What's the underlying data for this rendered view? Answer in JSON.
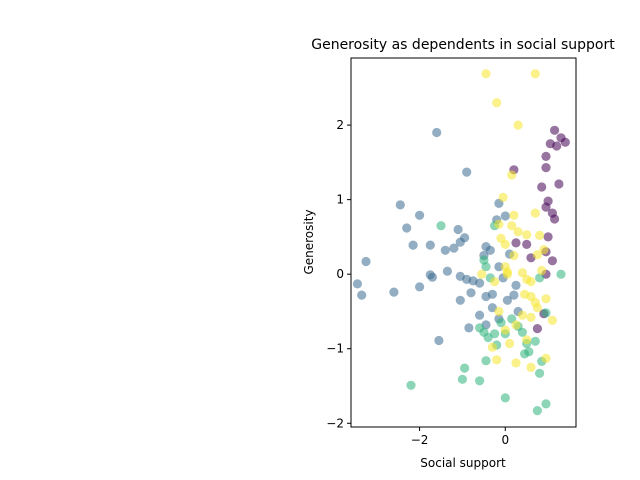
{
  "chart_data": {
    "type": "scatter",
    "title": "Generosity as dependents in social support",
    "xlabel": "Social support",
    "ylabel": "Generosity",
    "xlim": [
      -3.6,
      1.65
    ],
    "ylim": [
      -2.05,
      2.9
    ],
    "xticks": [
      -2,
      0
    ],
    "xtick_labels": [
      "−2",
      "0"
    ],
    "yticks": [
      -2,
      -1,
      0,
      1,
      2
    ],
    "ytick_labels": [
      "−2",
      "−1",
      "0",
      "1",
      "2"
    ],
    "grid": false,
    "legend": false,
    "marker_opacity": 0.55,
    "series": [
      {
        "color": "#440154",
        "points": [
          [
            1.15,
            1.93
          ],
          [
            1.3,
            1.83
          ],
          [
            1.4,
            1.77
          ],
          [
            1.05,
            1.75
          ],
          [
            1.2,
            1.72
          ],
          [
            0.95,
            1.58
          ],
          [
            0.95,
            1.43
          ],
          [
            0.85,
            1.17
          ],
          [
            1.25,
            1.21
          ],
          [
            1.0,
            0.98
          ],
          [
            0.95,
            0.9
          ],
          [
            1.1,
            0.82
          ],
          [
            1.15,
            0.74
          ],
          [
            1.0,
            0.5
          ],
          [
            0.2,
            1.4
          ],
          [
            0.25,
            0.42
          ],
          [
            0.5,
            0.4
          ],
          [
            0.6,
            0.22
          ],
          [
            0.95,
            0.3
          ],
          [
            1.1,
            0.18
          ],
          [
            0.75,
            -0.73
          ],
          [
            0.9,
            -0.53
          ],
          [
            0.95,
            0.0
          ]
        ]
      },
      {
        "color": "#3b6b8f",
        "points": [
          [
            -1.6,
            1.9
          ],
          [
            -0.9,
            1.37
          ],
          [
            -2.45,
            0.93
          ],
          [
            -2.0,
            0.79
          ],
          [
            -2.3,
            0.62
          ],
          [
            -1.1,
            0.6
          ],
          [
            -0.95,
            0.49
          ],
          [
            -1.2,
            0.35
          ],
          [
            -1.05,
            0.43
          ],
          [
            -1.4,
            0.32
          ],
          [
            -2.15,
            0.39
          ],
          [
            -1.75,
            0.39
          ],
          [
            -3.25,
            0.17
          ],
          [
            -1.75,
            -0.01
          ],
          [
            -1.7,
            -0.04
          ],
          [
            -1.35,
            0.04
          ],
          [
            -1.05,
            -0.03
          ],
          [
            -0.9,
            -0.07
          ],
          [
            -0.75,
            -0.09
          ],
          [
            -0.6,
            -0.12
          ],
          [
            -2.0,
            -0.17
          ],
          [
            -3.45,
            -0.13
          ],
          [
            -3.35,
            -0.28
          ],
          [
            -2.6,
            -0.24
          ],
          [
            -1.05,
            -0.35
          ],
          [
            -0.8,
            -0.25
          ],
          [
            -0.45,
            -0.3
          ],
          [
            -0.3,
            -0.27
          ],
          [
            -0.15,
            0.1
          ],
          [
            -0.15,
            0.95
          ],
          [
            -0.2,
            0.73
          ],
          [
            -0.05,
            -0.05
          ],
          [
            0.0,
            0.78
          ],
          [
            0.1,
            0.27
          ],
          [
            -0.45,
            0.37
          ],
          [
            -0.5,
            0.25
          ],
          [
            -0.35,
            0.32
          ],
          [
            -0.6,
            -0.55
          ],
          [
            -0.45,
            -0.68
          ],
          [
            -0.3,
            -0.45
          ],
          [
            -0.15,
            -0.6
          ],
          [
            0.05,
            -0.35
          ],
          [
            0.2,
            -0.28
          ],
          [
            0.25,
            -0.15
          ],
          [
            0.3,
            -0.5
          ],
          [
            -0.85,
            -0.72
          ],
          [
            -1.55,
            -0.89
          ]
        ]
      },
      {
        "color": "#2eb37c",
        "points": [
          [
            -1.5,
            0.65
          ],
          [
            -0.5,
            0.19
          ],
          [
            -0.45,
            0.1
          ],
          [
            -0.35,
            -0.05
          ],
          [
            -0.25,
            0.65
          ],
          [
            -0.6,
            -0.72
          ],
          [
            -0.5,
            -0.78
          ],
          [
            -0.4,
            -0.85
          ],
          [
            -0.25,
            -0.8
          ],
          [
            -0.2,
            -0.95
          ],
          [
            -0.1,
            -0.65
          ],
          [
            0.0,
            -0.8
          ],
          [
            0.15,
            -0.6
          ],
          [
            0.3,
            -0.7
          ],
          [
            0.4,
            -0.78
          ],
          [
            0.5,
            -0.93
          ],
          [
            0.45,
            -1.07
          ],
          [
            0.55,
            -1.04
          ],
          [
            0.7,
            -0.9
          ],
          [
            0.85,
            -1.17
          ],
          [
            0.8,
            -1.33
          ],
          [
            0.95,
            -1.74
          ],
          [
            0.75,
            -1.83
          ],
          [
            0.0,
            -1.66
          ],
          [
            -0.45,
            -1.16
          ],
          [
            -0.95,
            -1.26
          ],
          [
            -1.0,
            -1.41
          ],
          [
            -0.6,
            -1.43
          ],
          [
            -2.2,
            -1.49
          ],
          [
            0.95,
            -0.52
          ],
          [
            0.8,
            -0.05
          ],
          [
            1.3,
            0.0
          ]
        ]
      },
      {
        "color": "#f5e52a",
        "points": [
          [
            -0.45,
            2.69
          ],
          [
            0.7,
            2.69
          ],
          [
            -0.2,
            2.3
          ],
          [
            0.3,
            2.0
          ],
          [
            0.15,
            1.33
          ],
          [
            -0.05,
            1.03
          ],
          [
            0.2,
            0.79
          ],
          [
            0.15,
            0.65
          ],
          [
            -0.15,
            0.67
          ],
          [
            -0.1,
            0.48
          ],
          [
            0.0,
            0.4
          ],
          [
            0.3,
            0.57
          ],
          [
            0.5,
            0.53
          ],
          [
            0.7,
            0.82
          ],
          [
            0.8,
            0.52
          ],
          [
            0.75,
            0.26
          ],
          [
            0.9,
            0.33
          ],
          [
            0.85,
            0.05
          ],
          [
            -0.55,
            0.0
          ],
          [
            0.0,
            0.1
          ],
          [
            0.05,
            0.03
          ],
          [
            0.2,
            0.25
          ],
          [
            0.4,
            0.02
          ],
          [
            0.5,
            -0.07
          ],
          [
            0.6,
            -0.1
          ],
          [
            0.45,
            -0.27
          ],
          [
            0.6,
            -0.3
          ],
          [
            0.7,
            -0.38
          ],
          [
            0.75,
            -0.45
          ],
          [
            0.95,
            -0.33
          ],
          [
            0.4,
            -0.55
          ],
          [
            0.6,
            -0.58
          ],
          [
            0.25,
            -0.68
          ],
          [
            0.0,
            -0.75
          ],
          [
            -0.15,
            -0.5
          ],
          [
            0.1,
            -0.93
          ],
          [
            -0.3,
            -0.98
          ],
          [
            -0.2,
            -1.15
          ],
          [
            0.25,
            -1.19
          ],
          [
            0.6,
            -1.25
          ],
          [
            0.95,
            -1.13
          ],
          [
            1.1,
            -0.62
          ],
          [
            0.5,
            -0.88
          ],
          [
            0.05,
            0.0
          ],
          [
            -0.25,
            -0.1
          ]
        ]
      }
    ]
  }
}
